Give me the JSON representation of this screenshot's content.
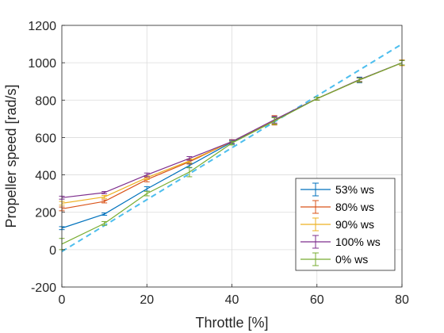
{
  "chart_data": {
    "type": "line",
    "title": "",
    "xlabel": "Throttle [%]",
    "ylabel": "Propeller speed [rad/s]",
    "xlim": [
      0,
      80
    ],
    "ylim": [
      -200,
      1200
    ],
    "xticks": [
      0,
      20,
      40,
      60,
      80
    ],
    "yticks": [
      -200,
      0,
      200,
      400,
      600,
      800,
      1000,
      1200
    ],
    "grid": true,
    "legend_position": "bottom-right",
    "series": [
      {
        "name": "53% ws",
        "color": "#0072BD",
        "x": [
          0,
          10,
          20,
          30,
          40,
          50,
          60,
          70,
          80
        ],
        "y": [
          115,
          190,
          325,
          450,
          575,
          690,
          808,
          908,
          1000
        ],
        "err": [
          8,
          6,
          12,
          12,
          10,
          18,
          8,
          15,
          12
        ]
      },
      {
        "name": "80% ws",
        "color": "#D95319",
        "x": [
          0,
          10,
          20,
          30,
          40,
          50,
          60,
          70,
          80
        ],
        "y": [
          218,
          258,
          375,
          470,
          578,
          692,
          808,
          908,
          1000
        ],
        "err": [
          10,
          8,
          12,
          12,
          10,
          25,
          8,
          12,
          15
        ]
      },
      {
        "name": "90% ws",
        "color": "#EDB120",
        "x": [
          0,
          10,
          20,
          30,
          40,
          50,
          60,
          70,
          80
        ],
        "y": [
          248,
          282,
          385,
          475,
          578,
          692,
          808,
          908,
          1000
        ],
        "err": [
          10,
          8,
          10,
          10,
          10,
          20,
          8,
          10,
          15
        ]
      },
      {
        "name": "100% ws",
        "color": "#7E2F8E",
        "x": [
          0,
          10,
          20,
          30,
          40,
          50,
          60,
          70,
          80
        ],
        "y": [
          278,
          305,
          400,
          488,
          578,
          695,
          808,
          910,
          1000
        ],
        "err": [
          8,
          6,
          10,
          10,
          10,
          18,
          8,
          10,
          12
        ]
      },
      {
        "name": "0% ws",
        "color": "#77AC30",
        "x": [
          0,
          10,
          20,
          30,
          40,
          50,
          60,
          70,
          80
        ],
        "y": [
          30,
          140,
          300,
          415,
          570,
          688,
          808,
          908,
          1000
        ],
        "err": [
          30,
          10,
          12,
          25,
          10,
          18,
          8,
          10,
          12
        ]
      }
    ],
    "fit_line": {
      "color": "#4DBEEE",
      "style": "dashed",
      "x": [
        0,
        80
      ],
      "y": [
        -10,
        1100
      ]
    }
  }
}
